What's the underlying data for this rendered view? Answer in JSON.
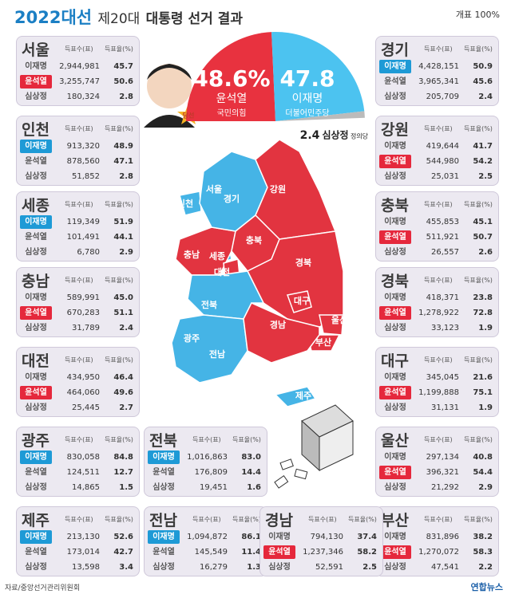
{
  "header": {
    "title_a": "2022",
    "title_b": "대선",
    "subtitle": "제20대",
    "title_c": "대통령 선거 결과",
    "progress": "개표 100%"
  },
  "candidates": [
    "이재명",
    "윤석열",
    "심상정"
  ],
  "columns": [
    "득표수(표)",
    "득표율(%)"
  ],
  "summary": {
    "badge": "당선",
    "items": [
      {
        "candidate": 1,
        "party": "국민의힘",
        "value": 48.6,
        "value_label": "48.6%",
        "color": "#e8323f"
      },
      {
        "candidate": 0,
        "party": "더불어민주당",
        "value": 47.8,
        "color": "#4cc3f0"
      },
      {
        "candidate": 2,
        "party": "정의당",
        "value": 2.4,
        "color": "#bbbbbb"
      }
    ]
  },
  "colors": [
    "#1e9ad6",
    "#e5283c",
    "#888888"
  ],
  "map_colors": [
    "#45b4e6",
    "#e23440",
    "#cccccc"
  ],
  "regions": [
    {
      "name": "서울",
      "rows": [
        [
          "2,944,981",
          "45.7"
        ],
        [
          "3,255,747",
          "50.6"
        ],
        [
          "180,324",
          "2.8"
        ]
      ]
    },
    {
      "name": "인천",
      "rows": [
        [
          "913,320",
          "48.9"
        ],
        [
          "878,560",
          "47.1"
        ],
        [
          "51,852",
          "2.8"
        ]
      ]
    },
    {
      "name": "세종",
      "rows": [
        [
          "119,349",
          "51.9"
        ],
        [
          "101,491",
          "44.1"
        ],
        [
          "6,780",
          "2.9"
        ]
      ]
    },
    {
      "name": "충남",
      "rows": [
        [
          "589,991",
          "45.0"
        ],
        [
          "670,283",
          "51.1"
        ],
        [
          "31,789",
          "2.4"
        ]
      ]
    },
    {
      "name": "대전",
      "rows": [
        [
          "434,950",
          "46.4"
        ],
        [
          "464,060",
          "49.6"
        ],
        [
          "25,445",
          "2.7"
        ]
      ]
    },
    {
      "name": "광주",
      "rows": [
        [
          "830,058",
          "84.8"
        ],
        [
          "124,511",
          "12.7"
        ],
        [
          "14,865",
          "1.5"
        ]
      ]
    },
    {
      "name": "제주",
      "rows": [
        [
          "213,130",
          "52.6"
        ],
        [
          "173,014",
          "42.7"
        ],
        [
          "13,598",
          "3.4"
        ]
      ]
    },
    {
      "name": "경기",
      "rows": [
        [
          "4,428,151",
          "50.9"
        ],
        [
          "3,965,341",
          "45.6"
        ],
        [
          "205,709",
          "2.4"
        ]
      ]
    },
    {
      "name": "강원",
      "rows": [
        [
          "419,644",
          "41.7"
        ],
        [
          "544,980",
          "54.2"
        ],
        [
          "25,031",
          "2.5"
        ]
      ]
    },
    {
      "name": "충북",
      "rows": [
        [
          "455,853",
          "45.1"
        ],
        [
          "511,921",
          "50.7"
        ],
        [
          "26,557",
          "2.6"
        ]
      ]
    },
    {
      "name": "경북",
      "rows": [
        [
          "418,371",
          "23.8"
        ],
        [
          "1,278,922",
          "72.8"
        ],
        [
          "33,123",
          "1.9"
        ]
      ]
    },
    {
      "name": "대구",
      "rows": [
        [
          "345,045",
          "21.6"
        ],
        [
          "1,199,888",
          "75.1"
        ],
        [
          "31,131",
          "1.9"
        ]
      ]
    },
    {
      "name": "울산",
      "rows": [
        [
          "297,134",
          "40.8"
        ],
        [
          "396,321",
          "54.4"
        ],
        [
          "21,292",
          "2.9"
        ]
      ]
    },
    {
      "name": "부산",
      "rows": [
        [
          "831,896",
          "38.2"
        ],
        [
          "1,270,072",
          "58.3"
        ],
        [
          "47,541",
          "2.2"
        ]
      ]
    },
    {
      "name": "전북",
      "rows": [
        [
          "1,016,863",
          "83.0"
        ],
        [
          "176,809",
          "14.4"
        ],
        [
          "19,451",
          "1.6"
        ]
      ]
    },
    {
      "name": "전남",
      "rows": [
        [
          "1,094,872",
          "86.1"
        ],
        [
          "145,549",
          "11.4"
        ],
        [
          "16,279",
          "1.3"
        ]
      ]
    },
    {
      "name": "경남",
      "rows": [
        [
          "794,130",
          "37.4"
        ],
        [
          "1,237,346",
          "58.2"
        ],
        [
          "52,591",
          "2.5"
        ]
      ]
    }
  ],
  "footer": {
    "source": "자료/중앙선거관리위원회",
    "brand": "연합뉴스"
  }
}
